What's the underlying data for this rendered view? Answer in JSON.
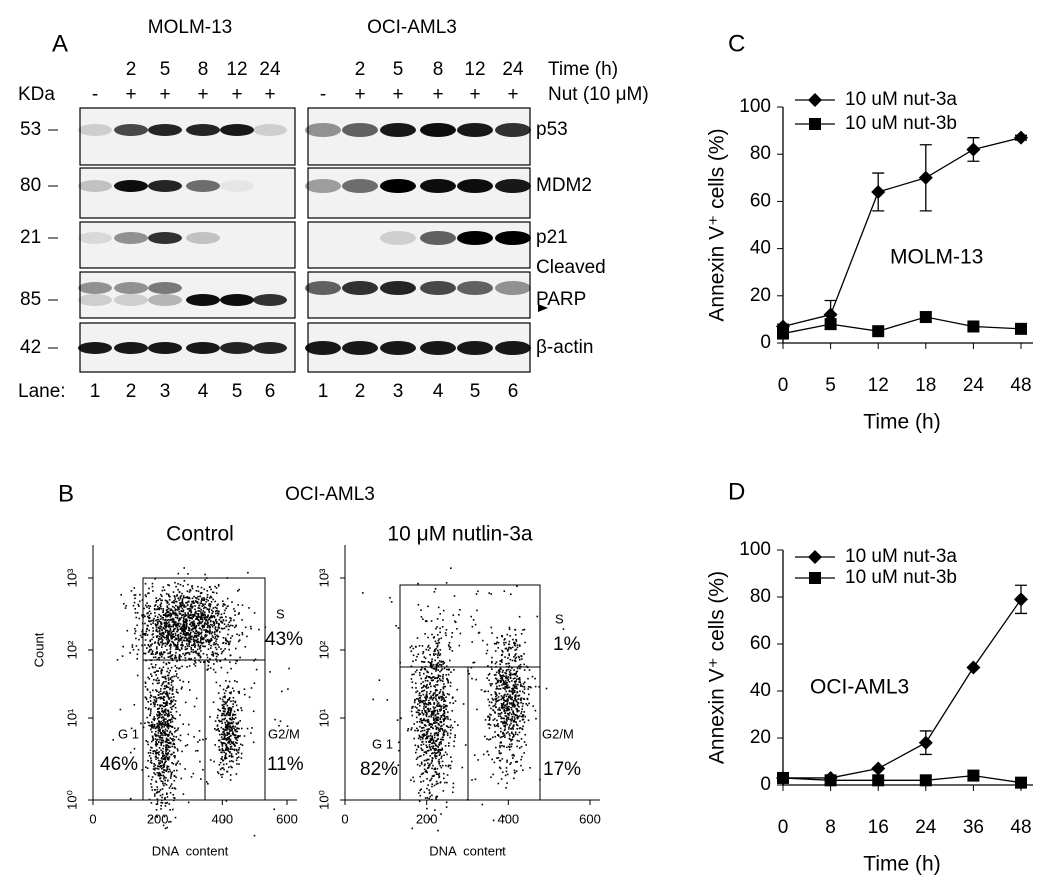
{
  "panel_a": {
    "label": "A",
    "cell_lines": [
      "MOLM-13",
      "OCI-AML3"
    ],
    "time_header": "Time (h)",
    "kda_header": "KDa",
    "nut_header": "Nut (10 μM)",
    "times": [
      "2",
      "5",
      "8",
      "12",
      "24"
    ],
    "treatments": [
      "-",
      "+",
      "+",
      "+",
      "+",
      "+"
    ],
    "rows": [
      {
        "kda": "53",
        "protein": "p53"
      },
      {
        "kda": "80",
        "protein": "MDM2"
      },
      {
        "kda": "21",
        "protein": "p21"
      },
      {
        "kda": "85",
        "protein": "PARP"
      },
      {
        "kda": "42",
        "protein": "β-actin"
      }
    ],
    "cleaved_label": "Cleaved",
    "lane_title": "Lane:",
    "lanes": [
      "1",
      "2",
      "3",
      "4",
      "5",
      "6"
    ]
  },
  "panel_b": {
    "label": "B",
    "title": "OCI-AML3",
    "plots": [
      {
        "title": "Control",
        "ylabel": "Count",
        "xlabel": "DNA  content",
        "xticks": [
          "0",
          "200",
          "400",
          "600"
        ],
        "yticks": [
          "10⁰",
          "10¹",
          "10²",
          "10³"
        ],
        "s_label": "S",
        "s_pct": "43%",
        "g1_label": "G 1",
        "g1_pct": "46%",
        "g2m_label": "G2/M",
        "g2m_pct": "11%"
      },
      {
        "title": "10 μM nutlin-3a",
        "xlabel": "DNA  content",
        "xticks": [
          "0",
          "200",
          "400",
          "600"
        ],
        "yticks": [
          "10⁰",
          "10¹",
          "10²",
          "10³"
        ],
        "s_label": "S",
        "s_pct": "1%",
        "g1_label": "G 1",
        "g1_pct": "82%",
        "g2m_label": "G2/M",
        "g2m_pct": "17%"
      }
    ]
  },
  "chart_data": [
    {
      "type": "line",
      "panel_label": "C",
      "categories": [
        "0",
        "5",
        "12",
        "18",
        "24",
        "48"
      ],
      "xlabel": "Time (h)",
      "ylabel": "Annexin V⁺ cells (%)",
      "ylim": [
        0,
        100
      ],
      "yticks": [
        0,
        20,
        40,
        60,
        80,
        100
      ],
      "annotation": "MOLM-13",
      "series": [
        {
          "name": "10 uM nut-3a",
          "color": "#000000",
          "marker": "diamond",
          "values": [
            7,
            12,
            64,
            70,
            82,
            87
          ],
          "errors": [
            1,
            6,
            8,
            14,
            5,
            1
          ]
        },
        {
          "name": "10 uM nut-3b",
          "color": "#000000",
          "marker": "square",
          "values": [
            4,
            8,
            5,
            11,
            7,
            6
          ],
          "errors": [
            null,
            null,
            null,
            null,
            null,
            null
          ]
        }
      ]
    },
    {
      "type": "line",
      "panel_label": "D",
      "categories": [
        "0",
        "8",
        "16",
        "24",
        "36",
        "48"
      ],
      "xlabel": "Time (h)",
      "ylabel": "Annexin V⁺ cells (%)",
      "ylim": [
        0,
        100
      ],
      "yticks": [
        0,
        20,
        40,
        60,
        80,
        100
      ],
      "annotation": "OCI-AML3",
      "series": [
        {
          "name": "10 uM nut-3a",
          "color": "#000000",
          "marker": "diamond",
          "values": [
            3,
            3,
            7,
            18,
            50,
            79
          ],
          "errors": [
            null,
            null,
            null,
            5,
            null,
            6
          ]
        },
        {
          "name": "10 uM nut-3b",
          "color": "#000000",
          "marker": "square",
          "values": [
            3,
            2,
            2,
            2,
            4,
            1
          ],
          "errors": [
            null,
            null,
            null,
            null,
            null,
            null
          ]
        }
      ]
    }
  ]
}
